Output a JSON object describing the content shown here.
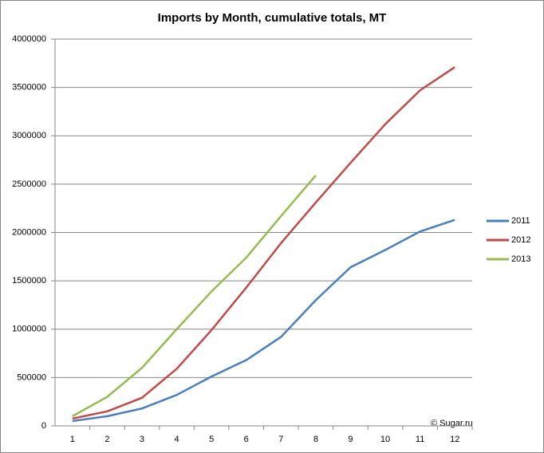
{
  "chart_data": {
    "type": "line",
    "title": "Imports by Month, cumulative totals, MT",
    "annotation": "© Sugar.ru",
    "categories": [
      "1",
      "2",
      "3",
      "4",
      "5",
      "6",
      "7",
      "8",
      "9",
      "10",
      "11",
      "12"
    ],
    "series": [
      {
        "name": "2011",
        "color": "#4a7ebb",
        "values": [
          50000,
          100000,
          180000,
          320000,
          510000,
          680000,
          920000,
          1300000,
          1640000,
          1820000,
          2010000,
          2130000
        ]
      },
      {
        "name": "2012",
        "color": "#be4b48",
        "values": [
          75000,
          150000,
          290000,
          590000,
          990000,
          1430000,
          1890000,
          2310000,
          2720000,
          3120000,
          3470000,
          3710000
        ]
      },
      {
        "name": "2013",
        "color": "#98b954",
        "values": [
          100000,
          300000,
          600000,
          1000000,
          1390000,
          1740000,
          2170000,
          2590000,
          null,
          null,
          null,
          null
        ]
      }
    ],
    "ylim": [
      0,
      4000000
    ],
    "yticks": [
      0,
      500000,
      1000000,
      1500000,
      2000000,
      2500000,
      3000000,
      3500000,
      4000000
    ],
    "grid": true,
    "legend": "right"
  }
}
